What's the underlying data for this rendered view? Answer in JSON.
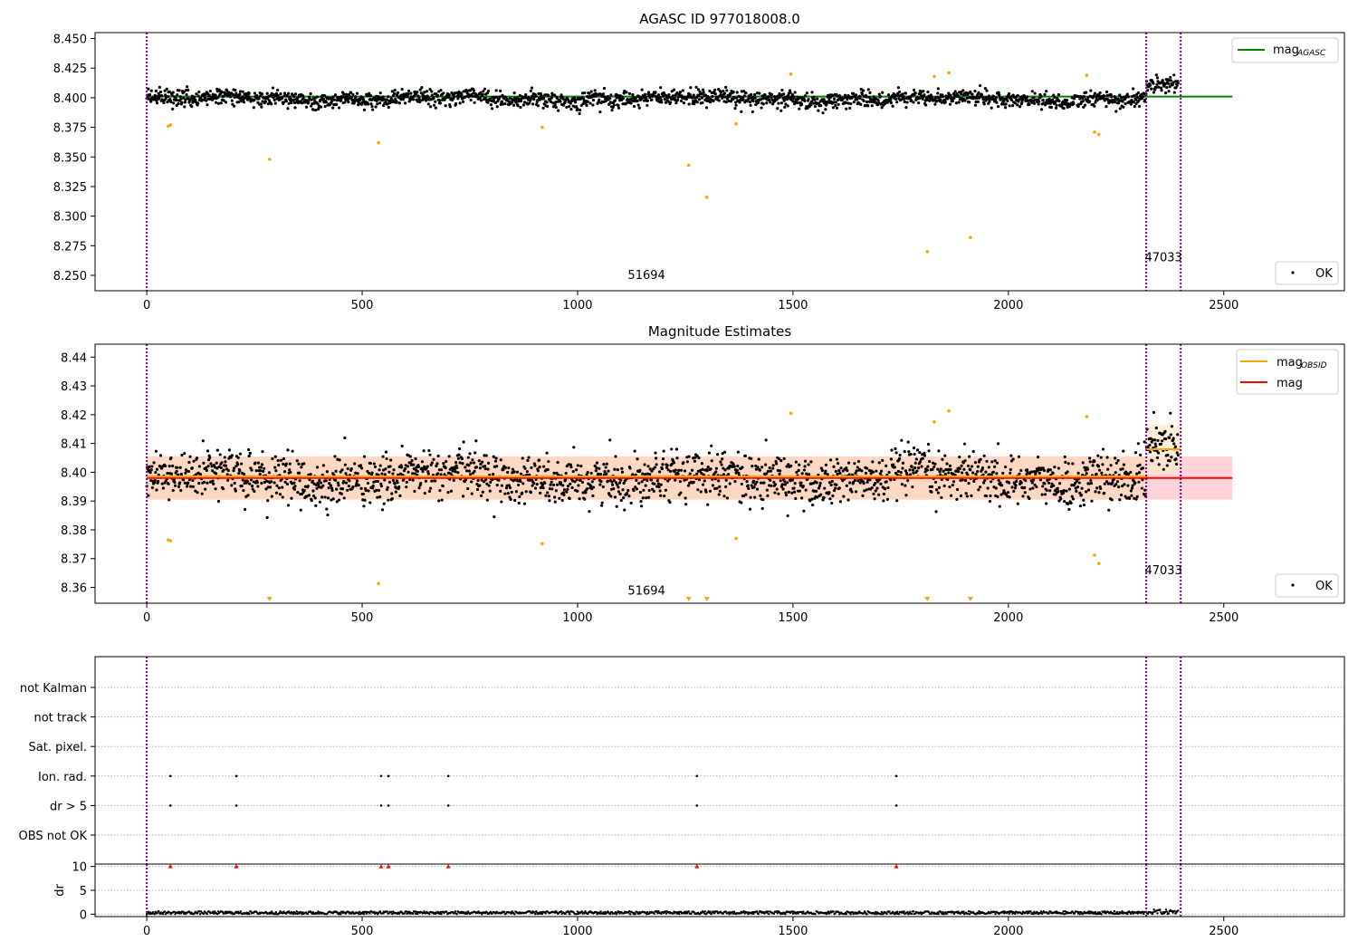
{
  "chart_data": [
    {
      "type": "scatter",
      "title": "AGASC ID 977018008.0",
      "xlim": [
        -120,
        2780
      ],
      "ylim": [
        8.237,
        8.455
      ],
      "xticks": [
        0,
        500,
        1000,
        1500,
        2000,
        2500
      ],
      "yticks": [
        8.25,
        8.275,
        8.3,
        8.325,
        8.35,
        8.375,
        8.4,
        8.425,
        8.45
      ],
      "ytick_labels": [
        "8.250",
        "8.275",
        "8.300",
        "8.325",
        "8.350",
        "8.375",
        "8.400",
        "8.425",
        "8.450"
      ],
      "grid": false,
      "series": [
        {
          "name": "OK",
          "kind": "points",
          "color": "#000000",
          "x_range": [
            0,
            2395
          ],
          "center": 8.399,
          "spread": 0.006
        },
        {
          "kind": "outliers",
          "color": "#ffa500",
          "points": [
            [
              50,
              8.376
            ],
            [
              55,
              8.377
            ],
            [
              285,
              8.348
            ],
            [
              538,
              8.362
            ],
            [
              918,
              8.375
            ],
            [
              1258,
              8.343
            ],
            [
              1300,
              8.316
            ],
            [
              1368,
              8.378
            ],
            [
              1495,
              8.42
            ],
            [
              1812,
              8.27
            ],
            [
              1828,
              8.418
            ],
            [
              1862,
              8.421
            ],
            [
              1912,
              8.282
            ],
            [
              2182,
              8.419
            ],
            [
              2200,
              8.371
            ],
            [
              2210,
              8.369
            ]
          ]
        }
      ],
      "lines": [
        {
          "name": "magAGASC",
          "color": "#008000",
          "x": [
            0,
            2520
          ],
          "y": 8.401
        }
      ],
      "vlines": [
        0,
        2320,
        2400
      ],
      "annotations": [
        {
          "text": "51694",
          "x": 1160,
          "y": 8.247
        },
        {
          "text": "47033",
          "x": 2360,
          "y": 8.262
        }
      ],
      "legend": {
        "placement": "top-right",
        "entries": [
          "mag",
          "AGASC"
        ]
      },
      "legend2": {
        "placement": "bottom-right",
        "entries": [
          "OK"
        ]
      }
    },
    {
      "type": "scatter",
      "title": "Magnitude Estimates",
      "xlim": [
        -120,
        2780
      ],
      "ylim": [
        8.3545,
        8.4445
      ],
      "xticks": [
        0,
        500,
        1000,
        1500,
        2000,
        2500
      ],
      "yticks": [
        8.36,
        8.37,
        8.38,
        8.39,
        8.4,
        8.41,
        8.42,
        8.43,
        8.44
      ],
      "ytick_labels": [
        "8.36",
        "8.37",
        "8.38",
        "8.39",
        "8.40",
        "8.41",
        "8.42",
        "8.43",
        "8.44"
      ],
      "grid": false,
      "bands": [
        {
          "color": "#ffc0cb",
          "x": [
            0,
            2520
          ],
          "y": [
            8.3905,
            8.4055
          ]
        },
        {
          "color": "#ffdab9",
          "x": [
            0,
            2320
          ],
          "y": [
            8.3905,
            8.4055
          ]
        },
        {
          "color": "#ffe8cc",
          "x": [
            2320,
            2400
          ],
          "y": [
            8.3995,
            8.4165
          ]
        }
      ],
      "lines": [
        {
          "name": "mag",
          "color": "#ff0000",
          "x": [
            0,
            2520
          ],
          "y": 8.398
        },
        {
          "color": "#ffa500",
          "x": [
            0,
            2320
          ],
          "y": 8.3985
        },
        {
          "name": "magOBSID",
          "color": "#ffa500",
          "x": [
            2320,
            2400
          ],
          "y": 8.408
        }
      ],
      "series": [
        {
          "name": "OK",
          "kind": "points",
          "color": "#000000",
          "x_range": [
            0,
            2395
          ],
          "center": 8.398,
          "spread": 0.0075
        },
        {
          "kind": "outliers",
          "color": "#ffa500",
          "points": [
            [
              50,
              8.3765
            ],
            [
              55,
              8.3762
            ],
            [
              538,
              8.3613
            ],
            [
              918,
              8.3752
            ],
            [
              1368,
              8.377
            ],
            [
              1495,
              8.4205
            ],
            [
              1828,
              8.4175
            ],
            [
              1862,
              8.4213
            ],
            [
              2182,
              8.4193
            ],
            [
              2200,
              8.3712
            ],
            [
              2210,
              8.3683
            ]
          ]
        },
        {
          "kind": "clipped",
          "color": "#ffa500",
          "x": [
            285,
            1258,
            1300,
            1812,
            1912
          ]
        }
      ],
      "vlines": [
        0,
        2320,
        2400
      ],
      "annotations": [
        {
          "text": "51694",
          "x": 1160,
          "y": 8.3575
        },
        {
          "text": "47033",
          "x": 2360,
          "y": 8.3645
        }
      ],
      "legend": {
        "placement": "top-right",
        "entries": [
          "mag",
          "OBSID",
          "mag"
        ]
      },
      "legend2": {
        "placement": "bottom-right",
        "entries": [
          "OK"
        ]
      }
    },
    {
      "type": "scatter",
      "xlim": [
        -120,
        2780
      ],
      "categories": [
        "not Kalman",
        "not track",
        "Sat. pixel.",
        "Ion. rad.",
        "dr > 5",
        "OBS not OK"
      ],
      "xticks": [
        0,
        500,
        1000,
        1500,
        2000,
        2500
      ],
      "grid": true,
      "series": [
        {
          "name": "Ion. rad.",
          "x": [
            55,
            208,
            544,
            561,
            700,
            1277,
            1740
          ]
        },
        {
          "name": "dr > 5",
          "x": [
            55,
            208,
            544,
            561,
            700,
            1277,
            1740
          ]
        }
      ],
      "vlines": [
        0,
        2320,
        2400
      ]
    },
    {
      "type": "scatter",
      "xlim": [
        -120,
        2780
      ],
      "ylim": [
        -0.5,
        10.5
      ],
      "xticks": [
        0,
        500,
        1000,
        1500,
        2000,
        2500
      ],
      "yticks": [
        0,
        5,
        10
      ],
      "ytick_labels": [
        "0",
        "5",
        "10"
      ],
      "ylabel": "dr",
      "grid": true,
      "series": [
        {
          "kind": "points",
          "color": "#000000",
          "x_range": [
            0,
            2395
          ],
          "y_range": [
            0,
            0.6
          ]
        },
        {
          "kind": "markers",
          "color": "#ff0000",
          "y": 10,
          "x": [
            55,
            208,
            544,
            561,
            700,
            1277,
            1740
          ]
        }
      ],
      "vlines": [
        0,
        2320,
        2400
      ]
    }
  ]
}
